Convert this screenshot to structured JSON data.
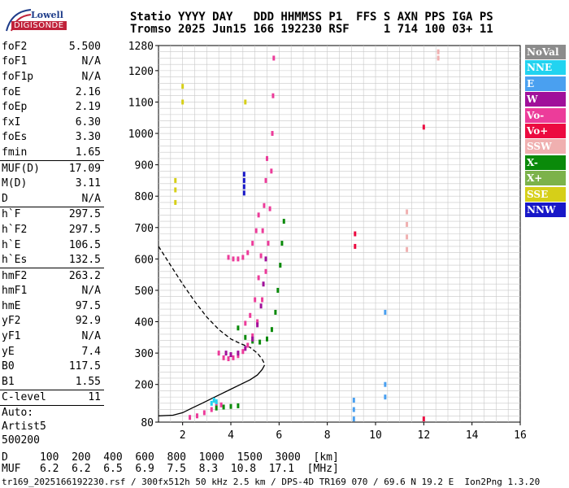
{
  "logo": {
    "line1": "Lowell",
    "line2": "DIGISONDE"
  },
  "header": {
    "line1": "Statio YYYY DAY   DDD HHMMSS P1  FFS S AXN PPS IGA PS",
    "line2": "Tromso 2025 Jun15 166 192230 RSF     1 714 100 03+ 11"
  },
  "params": {
    "group1": [
      {
        "name": "foF2",
        "value": "5.500"
      },
      {
        "name": "foF1",
        "value": "N/A"
      },
      {
        "name": "foF1p",
        "value": "N/A"
      },
      {
        "name": "foE",
        "value": "2.16"
      },
      {
        "name": "foEp",
        "value": "2.19"
      },
      {
        "name": "fxI",
        "value": "6.30"
      },
      {
        "name": "foEs",
        "value": "3.30"
      },
      {
        "name": "fmin",
        "value": "1.65"
      }
    ],
    "group2": [
      {
        "name": "MUF(D)",
        "value": "17.09"
      },
      {
        "name": "M(D)",
        "value": "3.11"
      },
      {
        "name": "D",
        "value": "N/A"
      }
    ],
    "group3": [
      {
        "name": "h`F",
        "value": "297.5"
      },
      {
        "name": "h`F2",
        "value": "297.5"
      },
      {
        "name": "h`E",
        "value": "106.5"
      },
      {
        "name": "h`Es",
        "value": "132.5"
      }
    ],
    "group4": [
      {
        "name": "hmF2",
        "value": "263.2"
      },
      {
        "name": "hmF1",
        "value": "N/A"
      },
      {
        "name": "hmE",
        "value": "97.5"
      },
      {
        "name": "yF2",
        "value": "92.9"
      },
      {
        "name": "yF1",
        "value": "N/A"
      },
      {
        "name": "yE",
        "value": "7.4"
      },
      {
        "name": "B0",
        "value": "117.5"
      },
      {
        "name": "B1",
        "value": "1.55"
      }
    ],
    "group5": [
      {
        "name": "C-level",
        "value": "11"
      }
    ],
    "auto": [
      "Auto:",
      "Artist5",
      "500200"
    ]
  },
  "legend": [
    {
      "label": "NoVal",
      "color": "#8c8c8c"
    },
    {
      "label": "NNE",
      "color": "#22d3f0"
    },
    {
      "label": "E",
      "color": "#4aa0f0"
    },
    {
      "label": "W",
      "color": "#a0109a"
    },
    {
      "label": "Vo-",
      "color": "#ec3c9a"
    },
    {
      "label": "Vo+",
      "color": "#ec0a40"
    },
    {
      "label": "SSW",
      "color": "#f0b0b0"
    },
    {
      "label": "X-",
      "color": "#0a8a0a"
    },
    {
      "label": "X+",
      "color": "#7cb24a"
    },
    {
      "label": "SSE",
      "color": "#d6cf18"
    },
    {
      "label": "NNW",
      "color": "#1818c8"
    }
  ],
  "footer": {
    "line1": "D     100  200  400  600  800  1000  1500  3000  [km]",
    "line2": "MUF   6.2  6.2  6.5  6.9  7.5  8.3  10.8  17.1  [MHz]",
    "line3": "tr169_2025166192230.rsf / 300fx512h 50 kHz 2.5 km / DPS-4D TR169 070 / 69.6 N 19.2 E  Ion2Png 1.3.20"
  },
  "chart_data": {
    "type": "scatter",
    "title": "",
    "xlabel": "",
    "ylabel": "",
    "xlim": [
      1,
      16
    ],
    "ylim": [
      80,
      1280
    ],
    "xticks": [
      2,
      4,
      6,
      8,
      10,
      12,
      14,
      16
    ],
    "yticks": [
      80,
      200,
      300,
      400,
      500,
      600,
      700,
      800,
      900,
      1000,
      1100,
      1200,
      1280
    ],
    "grid": true,
    "series": [
      {
        "name": "Vo-",
        "color": "#ec3c9a",
        "points": [
          [
            3.5,
            300
          ],
          [
            3.7,
            285
          ],
          [
            3.9,
            282
          ],
          [
            4.1,
            285
          ],
          [
            4.3,
            292
          ],
          [
            4.5,
            305
          ],
          [
            4.7,
            325
          ],
          [
            4.9,
            355
          ],
          [
            5.1,
            400
          ],
          [
            5.3,
            470
          ],
          [
            5.45,
            560
          ],
          [
            5.55,
            650
          ],
          [
            5.62,
            760
          ],
          [
            5.68,
            880
          ],
          [
            5.72,
            1000
          ],
          [
            5.75,
            1120
          ],
          [
            5.78,
            1240
          ]
        ]
      },
      {
        "name": "Vo-",
        "color": "#ec3c9a",
        "points": [
          [
            4.6,
            395
          ],
          [
            4.8,
            420
          ],
          [
            5.0,
            470
          ],
          [
            5.15,
            540
          ],
          [
            5.25,
            610
          ],
          [
            5.32,
            690
          ],
          [
            5.38,
            770
          ],
          [
            5.45,
            850
          ],
          [
            5.5,
            920
          ]
        ]
      },
      {
        "name": "Vo-",
        "color": "#ec3c9a",
        "points": [
          [
            3.9,
            605
          ],
          [
            4.1,
            600
          ],
          [
            4.3,
            600
          ],
          [
            4.5,
            605
          ],
          [
            4.7,
            620
          ],
          [
            4.9,
            650
          ],
          [
            5.05,
            690
          ],
          [
            5.15,
            740
          ]
        ]
      },
      {
        "name": "Vo-",
        "color": "#ec3c9a",
        "points": [
          [
            2.3,
            95
          ],
          [
            2.6,
            100
          ],
          [
            2.9,
            110
          ],
          [
            3.2,
            120
          ],
          [
            3.4,
            140
          ],
          [
            3.6,
            135
          ]
        ]
      },
      {
        "name": "X-",
        "color": "#0a8a0a",
        "points": [
          [
            4.3,
            380
          ],
          [
            4.6,
            350
          ],
          [
            4.9,
            338
          ],
          [
            5.2,
            335
          ],
          [
            5.5,
            345
          ],
          [
            5.7,
            375
          ],
          [
            5.85,
            430
          ],
          [
            5.95,
            500
          ],
          [
            6.05,
            580
          ],
          [
            6.12,
            650
          ],
          [
            6.2,
            720
          ]
        ]
      },
      {
        "name": "X-",
        "color": "#0a8a0a",
        "points": [
          [
            3.4,
            125
          ],
          [
            3.7,
            128
          ],
          [
            4.0,
            130
          ],
          [
            4.3,
            132
          ]
        ]
      },
      {
        "name": "W",
        "color": "#a0109a",
        "points": [
          [
            3.8,
            300
          ],
          [
            4.0,
            295
          ],
          [
            4.3,
            300
          ],
          [
            4.6,
            315
          ],
          [
            4.9,
            345
          ],
          [
            5.1,
            390
          ],
          [
            5.25,
            450
          ],
          [
            5.35,
            520
          ],
          [
            5.45,
            600
          ]
        ]
      },
      {
        "name": "NNE",
        "color": "#22d3f0",
        "points": [
          [
            3.2,
            140
          ],
          [
            3.3,
            150
          ],
          [
            3.4,
            145
          ]
        ]
      },
      {
        "name": "NNW",
        "color": "#1818c8",
        "points": [
          [
            4.55,
            810
          ],
          [
            4.55,
            830
          ],
          [
            4.55,
            850
          ],
          [
            4.55,
            870
          ]
        ]
      },
      {
        "name": "SSW",
        "color": "#f0b0b0",
        "points": [
          [
            11.3,
            630
          ],
          [
            11.3,
            670
          ],
          [
            11.3,
            710
          ],
          [
            11.3,
            750
          ],
          [
            12.6,
            1240
          ],
          [
            12.6,
            1260
          ]
        ]
      },
      {
        "name": "SSE",
        "color": "#d6cf18",
        "points": [
          [
            1.7,
            780
          ],
          [
            1.7,
            820
          ],
          [
            1.7,
            850
          ],
          [
            2.0,
            1100
          ],
          [
            2.0,
            1150
          ],
          [
            4.6,
            1100
          ]
        ]
      },
      {
        "name": "Vo+",
        "color": "#ec0a40",
        "points": [
          [
            9.15,
            640
          ],
          [
            9.15,
            680
          ],
          [
            12.0,
            1020
          ],
          [
            12.0,
            90
          ]
        ]
      },
      {
        "name": "E",
        "color": "#4aa0f0",
        "points": [
          [
            9.1,
            90
          ],
          [
            9.1,
            120
          ],
          [
            9.1,
            150
          ],
          [
            10.4,
            160
          ],
          [
            10.4,
            200
          ],
          [
            10.4,
            430
          ]
        ]
      }
    ],
    "curves": [
      {
        "name": "profile-dashed",
        "style": "dashed",
        "points": [
          [
            1.0,
            640
          ],
          [
            1.5,
            580
          ],
          [
            2.0,
            520
          ],
          [
            2.5,
            465
          ],
          [
            3.0,
            415
          ],
          [
            3.5,
            375
          ],
          [
            4.0,
            345
          ],
          [
            4.4,
            330
          ],
          [
            4.8,
            318
          ],
          [
            5.1,
            300
          ],
          [
            5.3,
            280
          ],
          [
            5.4,
            265
          ]
        ]
      },
      {
        "name": "profile-solid",
        "style": "solid",
        "points": [
          [
            1.0,
            100
          ],
          [
            1.6,
            102
          ],
          [
            2.0,
            110
          ],
          [
            2.4,
            125
          ],
          [
            2.8,
            140
          ],
          [
            3.2,
            155
          ],
          [
            3.6,
            170
          ],
          [
            4.0,
            185
          ],
          [
            4.4,
            200
          ],
          [
            4.8,
            215
          ],
          [
            5.1,
            230
          ],
          [
            5.3,
            248
          ],
          [
            5.4,
            262
          ]
        ]
      }
    ]
  }
}
